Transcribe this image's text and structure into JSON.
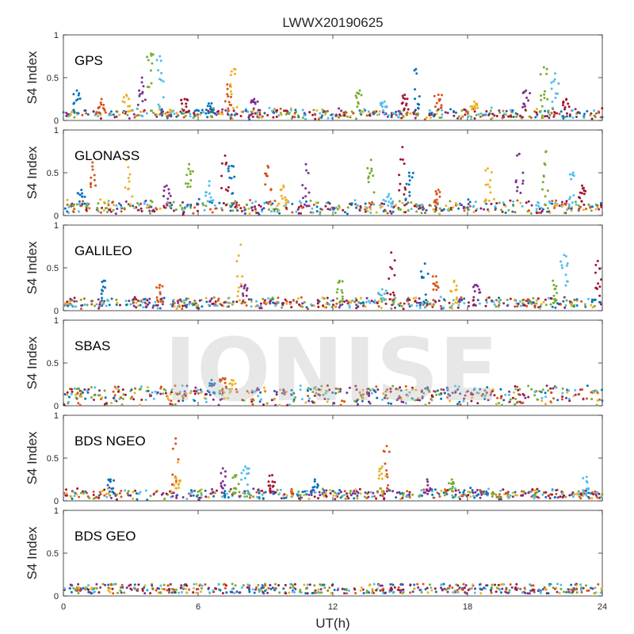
{
  "chart_data": {
    "type": "scatter",
    "title": "LWWX20190625",
    "xlabel": "UT(h)",
    "xlim": [
      0,
      24
    ],
    "xticks": [
      0,
      6,
      12,
      18,
      24
    ],
    "watermark": "IONISE",
    "series_colors": [
      "#0072BD",
      "#D95319",
      "#EDB120",
      "#7E2F8E",
      "#77AC30",
      "#4DBEEE",
      "#A2142F"
    ],
    "panels": [
      {
        "label": "GPS",
        "ylabel": "S4 Index",
        "ylim": [
          0,
          1
        ],
        "yticks": [
          0,
          0.5,
          1
        ],
        "baseline": 0.08,
        "noise": 0.05,
        "spikes": [
          [
            0.6,
            0.35
          ],
          [
            1.7,
            0.25
          ],
          [
            2.8,
            0.3
          ],
          [
            3.5,
            0.5
          ],
          [
            3.9,
            0.78
          ],
          [
            4.3,
            0.75
          ],
          [
            5.4,
            0.25
          ],
          [
            6.6,
            0.2
          ],
          [
            7.3,
            0.42
          ],
          [
            7.6,
            0.6
          ],
          [
            8.5,
            0.25
          ],
          [
            13.2,
            0.35
          ],
          [
            14.3,
            0.22
          ],
          [
            15.2,
            0.3
          ],
          [
            15.7,
            0.6
          ],
          [
            16.7,
            0.3
          ],
          [
            18.3,
            0.22
          ],
          [
            20.6,
            0.35
          ],
          [
            21.4,
            0.62
          ],
          [
            21.9,
            0.55
          ],
          [
            22.4,
            0.25
          ]
        ]
      },
      {
        "label": "GLONASS",
        "ylabel": "S4 Index",
        "ylim": [
          0,
          1
        ],
        "yticks": [
          0,
          0.5,
          1
        ],
        "baseline": 0.1,
        "noise": 0.07,
        "spikes": [
          [
            0.8,
            0.3
          ],
          [
            1.3,
            0.62
          ],
          [
            2.9,
            0.68
          ],
          [
            4.6,
            0.35
          ],
          [
            5.6,
            0.6
          ],
          [
            6.5,
            0.4
          ],
          [
            7.2,
            0.7
          ],
          [
            7.5,
            0.58
          ],
          [
            9.1,
            0.58
          ],
          [
            9.8,
            0.35
          ],
          [
            10.8,
            0.6
          ],
          [
            13.7,
            0.65
          ],
          [
            14.5,
            0.25
          ],
          [
            15.1,
            0.8
          ],
          [
            15.4,
            0.5
          ],
          [
            16.7,
            0.3
          ],
          [
            18.9,
            0.55
          ],
          [
            20.3,
            0.72
          ],
          [
            21.5,
            0.75
          ],
          [
            22.7,
            0.5
          ],
          [
            23.1,
            0.35
          ]
        ]
      },
      {
        "label": "GALILEO",
        "ylabel": "S4 Index",
        "ylim": [
          0,
          1
        ],
        "yticks": [
          0,
          0.5,
          1
        ],
        "baseline": 0.09,
        "noise": 0.04,
        "spikes": [
          [
            1.8,
            0.35
          ],
          [
            4.3,
            0.3
          ],
          [
            7.9,
            0.77
          ],
          [
            8.1,
            0.3
          ],
          [
            12.3,
            0.35
          ],
          [
            14.2,
            0.25
          ],
          [
            14.6,
            0.68
          ],
          [
            16.1,
            0.55
          ],
          [
            16.6,
            0.4
          ],
          [
            17.4,
            0.35
          ],
          [
            18.4,
            0.3
          ],
          [
            21.8,
            0.35
          ],
          [
            22.3,
            0.65
          ],
          [
            23.8,
            0.58
          ]
        ]
      },
      {
        "label": "SBAS",
        "ylabel": "S4 Index",
        "ylim": [
          0,
          1
        ],
        "yticks": [
          0,
          0.5,
          1
        ],
        "baseline": 0.14,
        "noise": 0.04,
        "bands": [
          0.05,
          0.11,
          0.16,
          0.19
        ],
        "spikes": [
          [
            6.6,
            0.3
          ],
          [
            7.1,
            0.32
          ],
          [
            7.5,
            0.3
          ]
        ]
      },
      {
        "label": "BDS NGEO",
        "ylabel": "S4 Index",
        "ylim": [
          0,
          1
        ],
        "yticks": [
          0,
          0.5,
          1
        ],
        "baseline": 0.08,
        "noise": 0.05,
        "spikes": [
          [
            2.1,
            0.25
          ],
          [
            5.0,
            0.73
          ],
          [
            5.1,
            0.45
          ],
          [
            7.1,
            0.38
          ],
          [
            7.7,
            0.3
          ],
          [
            8.1,
            0.4
          ],
          [
            9.3,
            0.3
          ],
          [
            11.2,
            0.25
          ],
          [
            14.4,
            0.64
          ],
          [
            14.2,
            0.4
          ],
          [
            16.2,
            0.25
          ],
          [
            17.3,
            0.25
          ],
          [
            23.3,
            0.28
          ]
        ]
      },
      {
        "label": "BDS GEO",
        "ylabel": "S4 Index",
        "ylim": [
          0,
          1
        ],
        "yticks": [
          0,
          0.5,
          1
        ],
        "baseline": 0.08,
        "noise": 0.005,
        "bands": [
          0.04,
          0.07,
          0.09,
          0.13
        ],
        "spikes": []
      }
    ]
  }
}
